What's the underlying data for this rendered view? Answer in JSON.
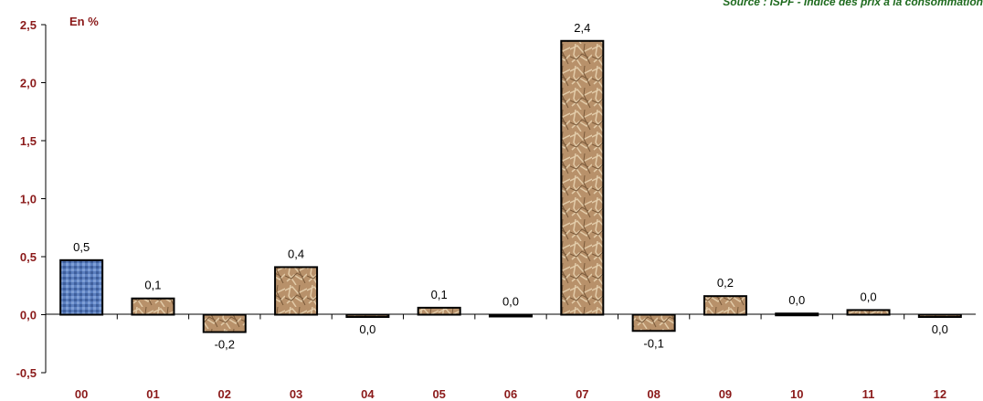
{
  "source_note": "Source : ISPF - Indice des prix à la consommation",
  "colors": {
    "first_bar": "#5b7fbf",
    "bars": "#b8916a",
    "axis_labels": "#8b1a1a",
    "source": "#1f6b1f"
  },
  "chart_data": {
    "type": "bar",
    "unit_label": "En %",
    "categories": [
      "00",
      "01",
      "02",
      "03",
      "04",
      "05",
      "06",
      "07",
      "08",
      "09",
      "10",
      "11",
      "12"
    ],
    "values": [
      0.47,
      0.14,
      -0.15,
      0.41,
      -0.02,
      0.06,
      0.0,
      2.36,
      -0.14,
      0.16,
      0.01,
      0.04,
      -0.02
    ],
    "data_labels": [
      "0,5",
      "0,1",
      "-0,2",
      "0,4",
      "0,0",
      "0,1",
      "0,0",
      "2,4",
      "-0,1",
      "0,2",
      "0,0",
      "0,0",
      "0,0"
    ],
    "yticks": [
      -0.5,
      0.0,
      0.5,
      1.0,
      1.5,
      2.0,
      2.5
    ],
    "ytick_labels": [
      "-0,5",
      "0,0",
      "0,5",
      "1,0",
      "1,5",
      "2,0",
      "2,5"
    ],
    "ylim": [
      -0.5,
      2.5
    ],
    "grid": false,
    "legend": "none"
  }
}
